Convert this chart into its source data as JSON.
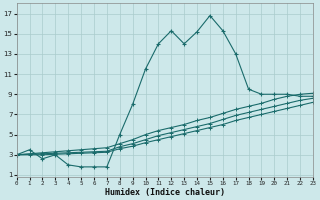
{
  "xlabel": "Humidex (Indice chaleur)",
  "bg_color": "#cde8ea",
  "grid_color": "#aacccc",
  "line_color": "#1a6b6b",
  "line1_x": [
    0,
    1,
    2,
    3,
    4,
    5,
    6,
    7,
    8,
    9,
    10,
    11,
    12,
    13,
    14,
    15,
    16,
    17,
    18,
    19,
    20,
    21,
    22,
    23
  ],
  "line1_y": [
    3.0,
    3.5,
    2.6,
    3.0,
    2.0,
    1.8,
    1.8,
    1.8,
    5.0,
    8.0,
    11.5,
    14.0,
    15.3,
    14.0,
    15.2,
    16.8,
    15.3,
    13.0,
    9.5,
    9.0,
    9.0,
    9.0,
    8.8,
    8.8
  ],
  "line2_x": [
    0,
    1,
    2,
    3,
    4,
    5,
    6,
    7,
    8,
    9,
    10,
    11,
    12,
    13,
    14,
    15,
    16,
    17,
    18,
    19,
    20,
    21,
    22,
    23
  ],
  "line2_y": [
    3.0,
    3.1,
    3.2,
    3.3,
    3.4,
    3.5,
    3.6,
    3.7,
    4.1,
    4.5,
    5.0,
    5.4,
    5.7,
    6.0,
    6.4,
    6.7,
    7.1,
    7.5,
    7.8,
    8.1,
    8.5,
    8.8,
    9.0,
    9.1
  ],
  "line3_x": [
    0,
    1,
    2,
    3,
    4,
    5,
    6,
    7,
    8,
    9,
    10,
    11,
    12,
    13,
    14,
    15,
    16,
    17,
    18,
    19,
    20,
    21,
    22,
    23
  ],
  "line3_y": [
    3.0,
    3.05,
    3.1,
    3.15,
    3.2,
    3.25,
    3.3,
    3.35,
    3.8,
    4.1,
    4.5,
    4.9,
    5.2,
    5.5,
    5.8,
    6.1,
    6.5,
    6.9,
    7.2,
    7.5,
    7.8,
    8.1,
    8.4,
    8.6
  ],
  "line4_x": [
    0,
    1,
    2,
    3,
    4,
    5,
    6,
    7,
    8,
    9,
    10,
    11,
    12,
    13,
    14,
    15,
    16,
    17,
    18,
    19,
    20,
    21,
    22,
    23
  ],
  "line4_y": [
    3.0,
    3.0,
    3.0,
    3.05,
    3.1,
    3.15,
    3.2,
    3.25,
    3.6,
    3.85,
    4.2,
    4.5,
    4.8,
    5.1,
    5.4,
    5.7,
    6.0,
    6.4,
    6.7,
    7.0,
    7.3,
    7.6,
    7.9,
    8.2
  ],
  "xlim": [
    0,
    23
  ],
  "ylim": [
    0.8,
    18
  ],
  "yticks": [
    1,
    3,
    5,
    7,
    9,
    11,
    13,
    15,
    17
  ],
  "xticks": [
    0,
    1,
    2,
    3,
    4,
    5,
    6,
    7,
    8,
    9,
    10,
    11,
    12,
    13,
    14,
    15,
    16,
    17,
    18,
    19,
    20,
    21,
    22,
    23
  ]
}
